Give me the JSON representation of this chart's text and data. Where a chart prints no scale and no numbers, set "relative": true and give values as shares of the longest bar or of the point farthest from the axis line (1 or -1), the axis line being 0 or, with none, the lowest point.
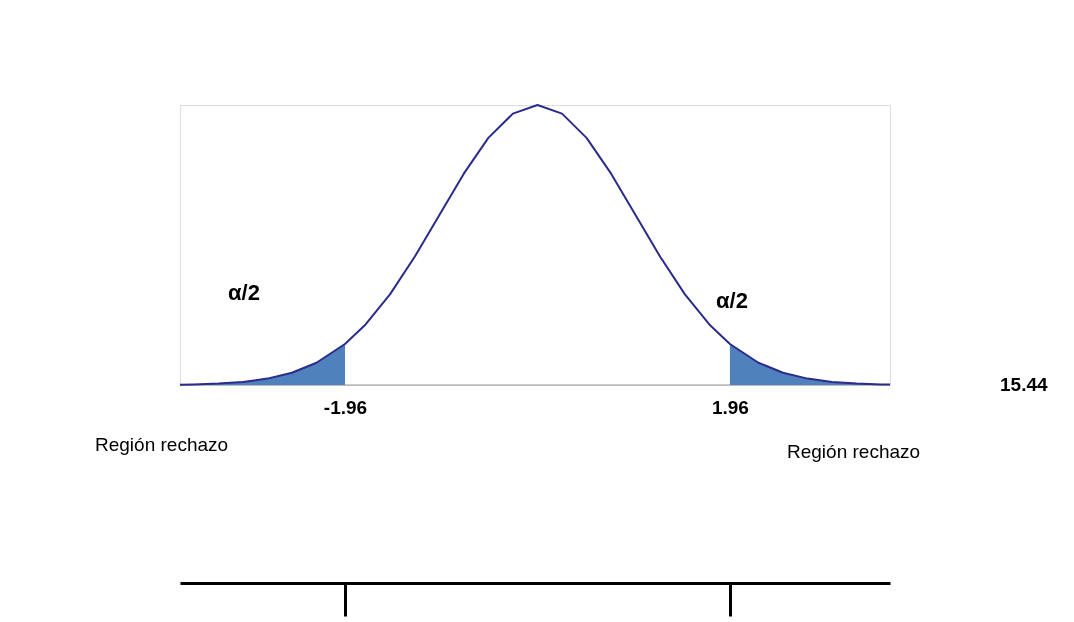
{
  "chart_data": {
    "type": "line",
    "relative": true,
    "xlim": [
      -3.64,
      3.59
    ],
    "xticks": [
      -1.96,
      1.96
    ],
    "grid": false,
    "marker": "none",
    "line_style": "solid",
    "series": [
      {
        "type": "line",
        "color": "#2b2b8c",
        "x": [
          -3.64,
          -3.5,
          -3.25,
          -3.0,
          -2.75,
          -2.5,
          -2.25,
          -1.96,
          -1.75,
          -1.5,
          -1.25,
          -1.0,
          -0.75,
          -0.5,
          -0.25,
          0,
          0.25,
          0.5,
          0.75,
          1.0,
          1.25,
          1.5,
          1.75,
          1.96,
          2.25,
          2.5,
          2.75,
          3.0,
          3.25,
          3.5,
          3.59
        ],
        "values": [
          0.0013,
          0.0022,
          0.0051,
          0.0111,
          0.0228,
          0.0439,
          0.0796,
          0.1465,
          0.2163,
          0.3247,
          0.4578,
          0.6065,
          0.7548,
          0.8825,
          0.9692,
          1,
          0.9692,
          0.8825,
          0.7548,
          0.6065,
          0.4578,
          0.3247,
          0.2163,
          0.1465,
          0.0796,
          0.0439,
          0.0228,
          0.0111,
          0.0051,
          0.0022,
          0.0016
        ]
      },
      {
        "type": "area",
        "color": "#4f81bd",
        "x": [
          -3.64,
          -3.5,
          -3.25,
          -3.0,
          -2.75,
          -2.5,
          -2.25,
          -1.96
        ],
        "values": [
          0.0013,
          0.0022,
          0.0051,
          0.0111,
          0.0228,
          0.0439,
          0.0796,
          0.1465
        ]
      },
      {
        "type": "area",
        "color": "#4f81bd",
        "x": [
          1.96,
          2.25,
          2.5,
          2.75,
          3.0,
          3.25,
          3.5,
          3.59
        ],
        "values": [
          0.1465,
          0.0796,
          0.0439,
          0.0228,
          0.0111,
          0.0051,
          0.0022,
          0.0016
        ]
      }
    ],
    "annotations": [
      "α/2",
      "α/2",
      "Región rechazo",
      "Región rechazo",
      "15.44"
    ]
  }
}
